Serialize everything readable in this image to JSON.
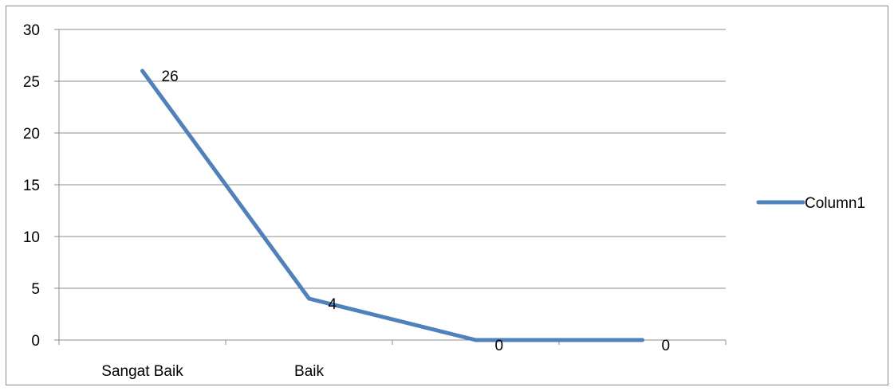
{
  "chart_data": {
    "type": "line",
    "categories": [
      "Sangat Baik",
      "Baik",
      "",
      ""
    ],
    "series": [
      {
        "name": "Column1",
        "values": [
          26,
          4,
          0,
          0
        ],
        "color": "#4F81BD"
      }
    ],
    "data_labels": [
      "26",
      "4",
      "0",
      "0"
    ],
    "ylim": [
      0,
      30
    ],
    "yticks": [
      0,
      5,
      10,
      15,
      20,
      25,
      30
    ],
    "title": "",
    "xlabel": "",
    "ylabel": "",
    "grid": true,
    "legend_position": "right"
  }
}
